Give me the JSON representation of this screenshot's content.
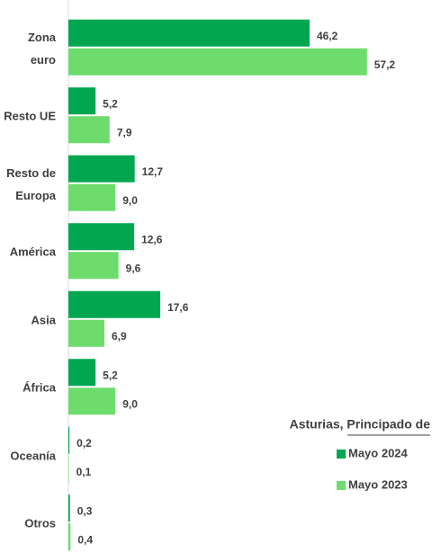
{
  "chart_data": {
    "type": "hbar",
    "categories": [
      "Zona euro",
      "Resto UE",
      "Resto de\nEuropa",
      "América",
      "Asia",
      "África",
      "Oceanía",
      "Otros"
    ],
    "series": [
      {
        "name": "Mayo 2024",
        "color": "#00a650",
        "values": [
          46.2,
          5.2,
          12.7,
          12.6,
          17.6,
          5.2,
          0.2,
          0.3
        ],
        "value_labels": [
          "46,2",
          "5,2",
          "12,7",
          "12,6",
          "17,6",
          "5,2",
          "0,2",
          "0,3"
        ]
      },
      {
        "name": "Mayo 2023",
        "color": "#6ddc6d",
        "values": [
          57.2,
          7.9,
          9.0,
          9.6,
          6.9,
          9.0,
          0.1,
          0.4
        ],
        "value_labels": [
          "57,2",
          "7,9",
          "9,0",
          "9,6",
          "6,9",
          "9,0",
          "0,1",
          "0,4"
        ]
      }
    ],
    "legend_title": "Asturias, Principado de",
    "xlim": [
      0,
      70
    ]
  }
}
